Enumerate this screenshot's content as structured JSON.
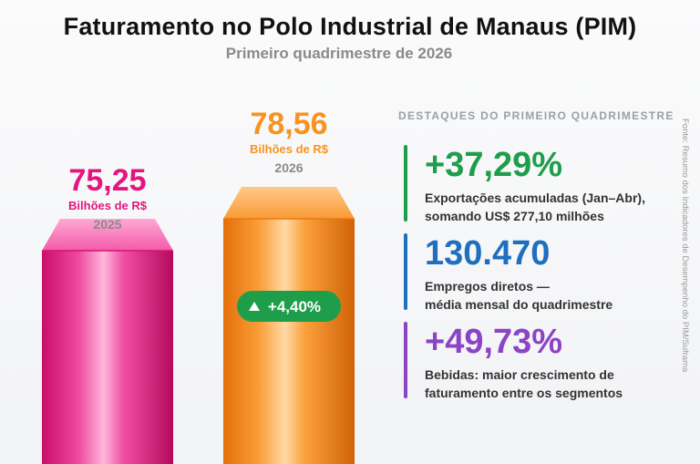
{
  "header": {
    "title": "Faturamento no Polo Industrial de Manaus (PIM)",
    "subtitle": "Primeiro quadrimestre de 2026"
  },
  "chart_data": {
    "type": "bar",
    "categories": [
      "2025",
      "2026"
    ],
    "values": [
      75.25,
      78.56
    ],
    "value_labels": [
      "75,25",
      "78,56"
    ],
    "unit_label": "Bilhões de R$",
    "colors": [
      "#e5157f",
      "#f7931e"
    ],
    "growth_badge": "+4,40%",
    "growth_color": "#1e9e4a"
  },
  "highlights": {
    "title": "DESTAQUES DO PRIMEIRO QUADRIMESTRE",
    "items": [
      {
        "value": "+37,29%",
        "line1": "Exportações acumuladas (Jan–Abr),",
        "line2": "somando US$ 277,10 milhões",
        "color": "#1e9e4a"
      },
      {
        "value": "130.470",
        "line1": "Empregos diretos —",
        "line2": "média mensal do quadrimestre",
        "color": "#1f6fbf"
      },
      {
        "value": "+49,73%",
        "line1": "Bebidas: maior crescimento de",
        "line2": "faturamento entre os segmentos",
        "color": "#8b44c4"
      }
    ]
  },
  "source": "Fonte: Resumo dos Indicadores de Desempenho do PIM/Suframa"
}
